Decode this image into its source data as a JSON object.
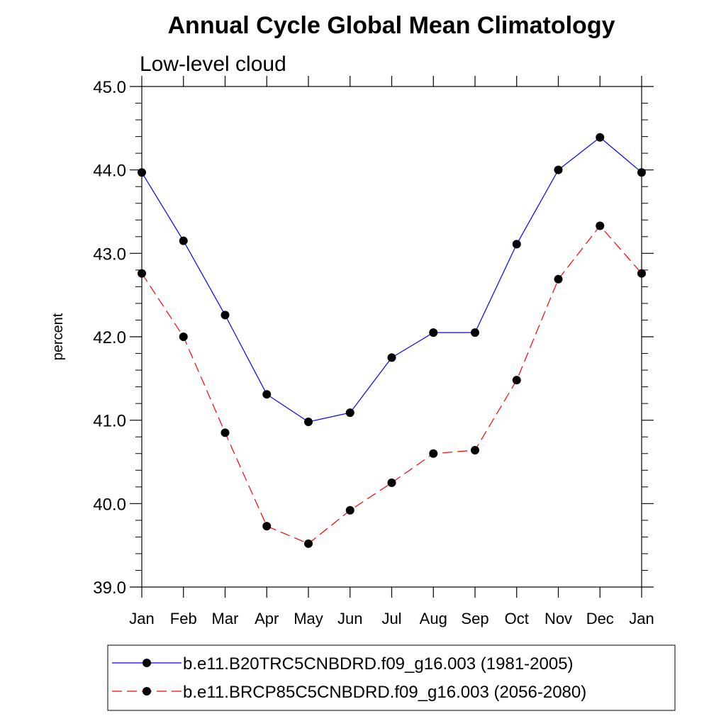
{
  "chart_data": {
    "type": "line",
    "title": "Annual Cycle Global Mean Climatology",
    "subtitle": "Low-level cloud",
    "xlabel": "",
    "ylabel": "percent",
    "categories": [
      "Jan",
      "Feb",
      "Mar",
      "Apr",
      "May",
      "Jun",
      "Jul",
      "Aug",
      "Sep",
      "Oct",
      "Nov",
      "Dec",
      "Jan"
    ],
    "ylim": [
      39.0,
      45.0
    ],
    "yticks": [
      "39.0",
      "40.0",
      "41.0",
      "42.0",
      "43.0",
      "44.0",
      "45.0"
    ],
    "grid": false,
    "legend_position": "bottom",
    "series": [
      {
        "name": "b.e11.B20TRC5CNBDRD.f09_g16.003 (1981-2005)",
        "color": "#0000ff",
        "dash": "solid",
        "marker": "filled-circle",
        "values": [
          43.97,
          43.15,
          42.26,
          41.31,
          40.98,
          41.09,
          41.75,
          42.05,
          42.05,
          43.11,
          44.0,
          44.39,
          43.97
        ]
      },
      {
        "name": "b.e11.BRCP85C5CNBDRD.f09_g16.003 (2056-2080)",
        "color": "#ff0000",
        "dash": "dashed",
        "marker": "filled-circle",
        "values": [
          42.76,
          42.0,
          40.85,
          39.73,
          39.52,
          39.92,
          40.25,
          40.6,
          40.64,
          41.48,
          42.69,
          43.33,
          42.76
        ]
      }
    ]
  }
}
